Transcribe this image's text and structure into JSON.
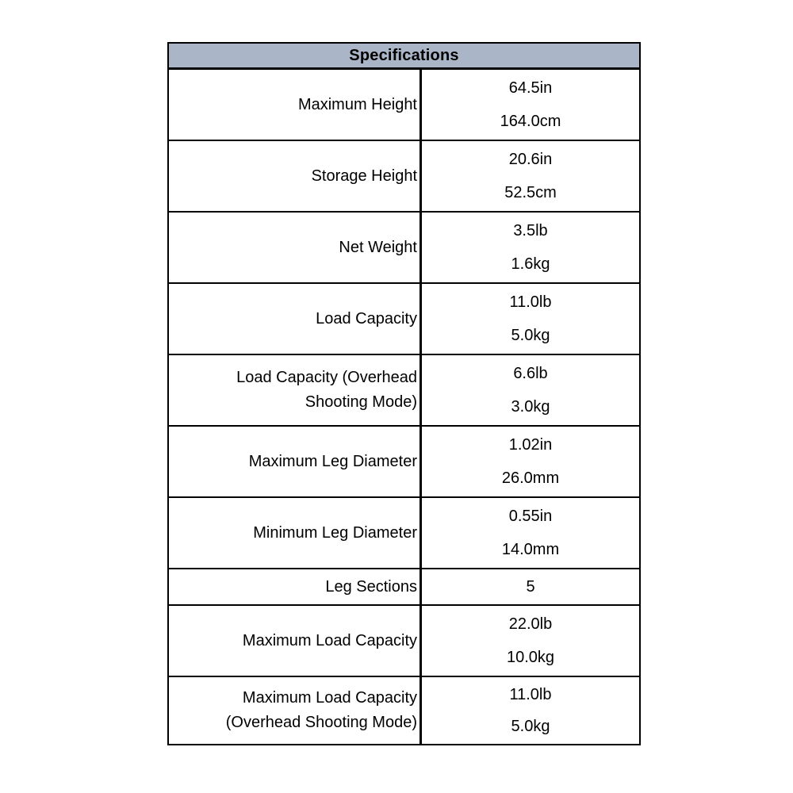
{
  "table": {
    "title": "Specifications",
    "colors": {
      "header_bg": "#aab5c7",
      "border": "#000000",
      "text": "#000000"
    },
    "rows": [
      {
        "label": "Maximum Height",
        "values": [
          "64.5in",
          "164.0cm"
        ]
      },
      {
        "label": "Storage Height",
        "values": [
          "20.6in",
          "52.5cm"
        ]
      },
      {
        "label": "Net Weight",
        "values": [
          "3.5lb",
          "1.6kg"
        ]
      },
      {
        "label": "Load Capacity",
        "values": [
          "11.0lb",
          "5.0kg"
        ]
      },
      {
        "label": "Load Capacity (Overhead Shooting Mode)",
        "values": [
          "6.6lb",
          "3.0kg"
        ]
      },
      {
        "label": "Maximum Leg Diameter",
        "values": [
          "1.02in",
          "26.0mm"
        ]
      },
      {
        "label": "Minimum Leg Diameter",
        "values": [
          "0.55in",
          "14.0mm"
        ]
      },
      {
        "label": "Leg Sections",
        "values": [
          "5"
        ]
      },
      {
        "label": "Maximum Load Capacity",
        "values": [
          "22.0lb",
          "10.0kg"
        ]
      },
      {
        "label": "Maximum Load Capacity (Overhead Shooting Mode)",
        "values": [
          "11.0lb",
          "5.0kg"
        ]
      }
    ]
  }
}
